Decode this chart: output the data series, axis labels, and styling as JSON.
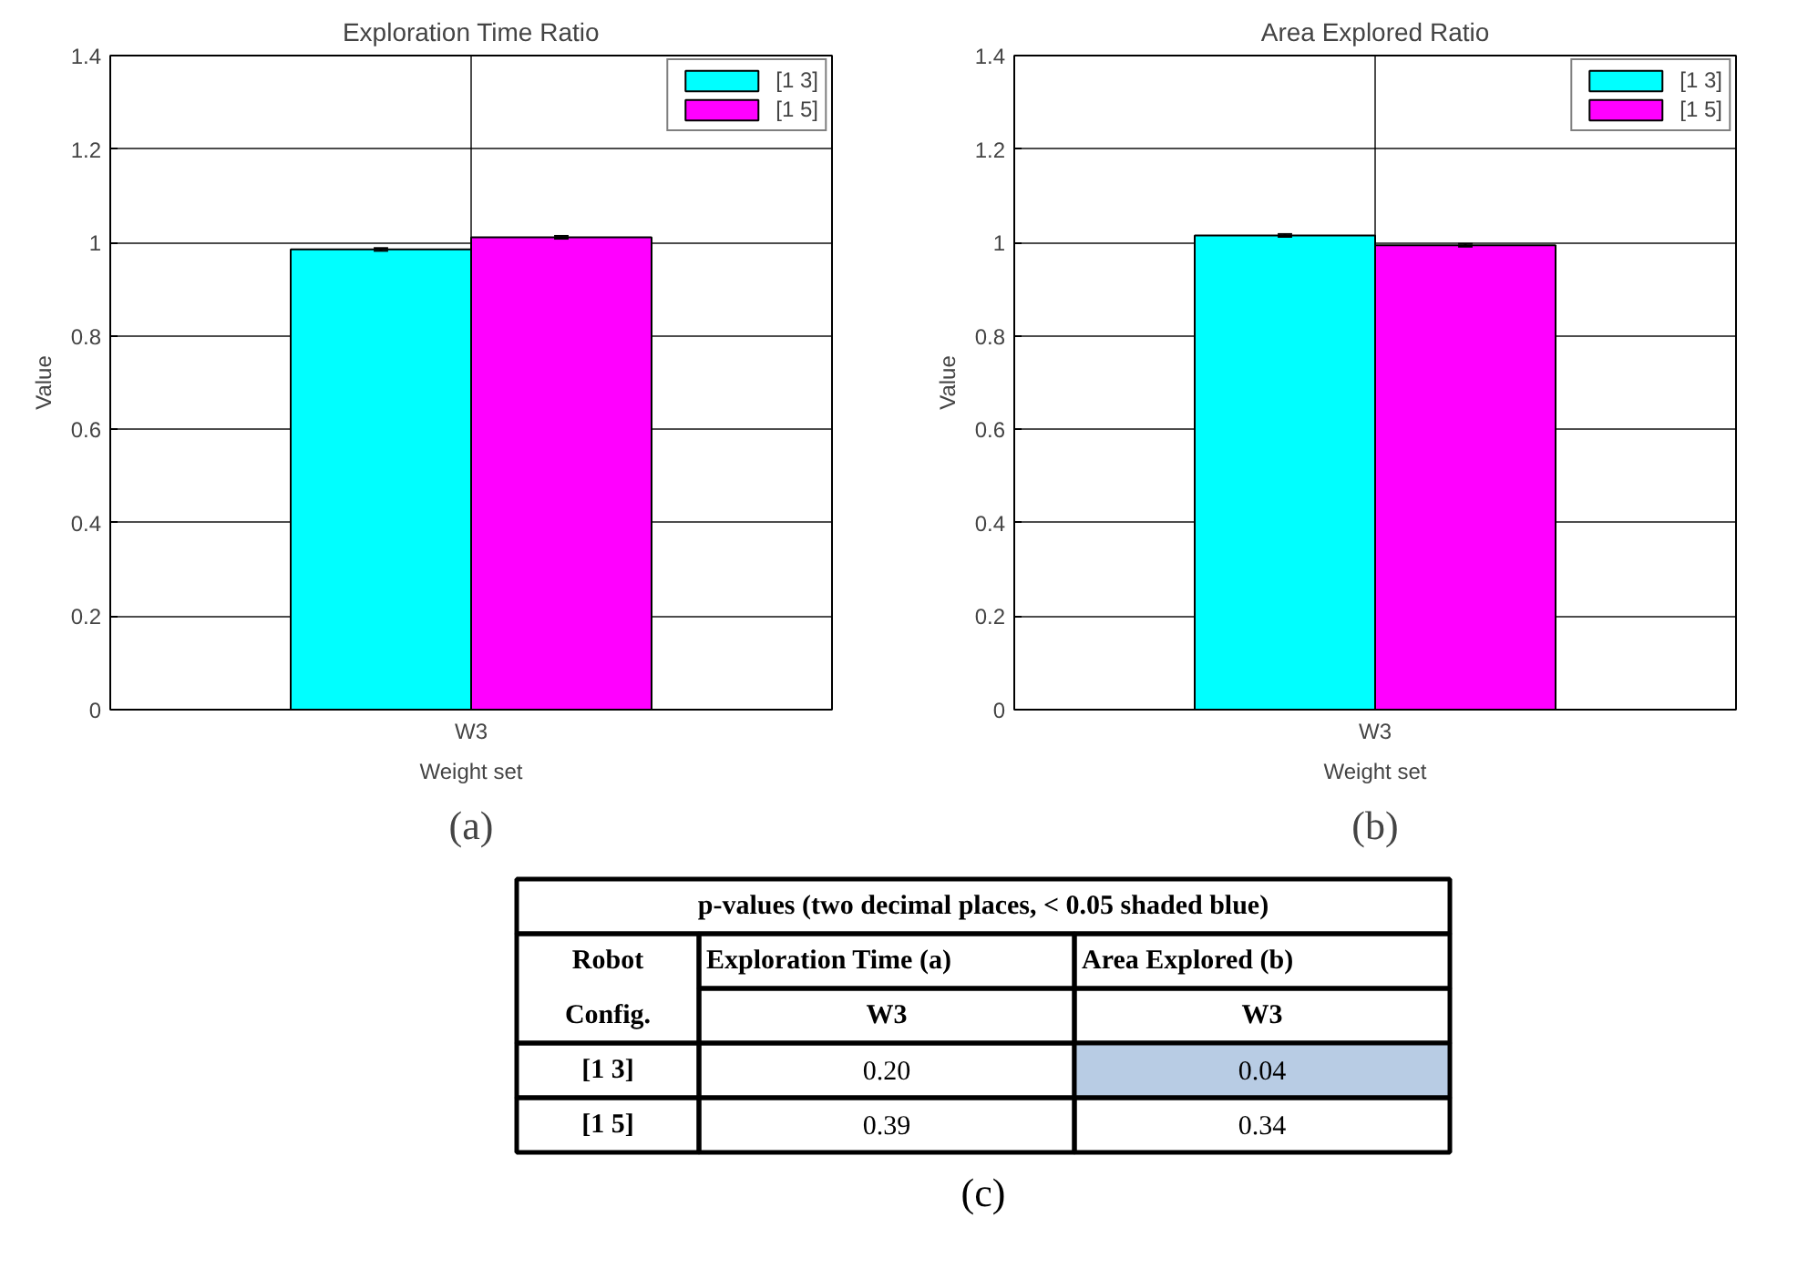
{
  "chart_data": [
    {
      "type": "bar",
      "title": "Exploration Time Ratio",
      "xlabel": "Weight set",
      "ylabel": "Value",
      "categories": [
        "W3"
      ],
      "series": [
        {
          "name": "[1 3]",
          "color": "#00ffff",
          "values": [
            0.985
          ],
          "errors": [
            0.003
          ]
        },
        {
          "name": "[1 5]",
          "color": "#ff00ff",
          "values": [
            1.011
          ],
          "errors": [
            0.003
          ]
        }
      ],
      "ylim": [
        0,
        1.4
      ],
      "yticks": [
        0,
        0.2,
        0.4,
        0.6,
        0.8,
        1,
        1.2,
        1.4
      ],
      "grid": true,
      "legend": "top right",
      "annotations": [
        "(a)"
      ]
    },
    {
      "type": "bar",
      "title": "Area Explored Ratio",
      "xlabel": "Weight set",
      "ylabel": "Value",
      "categories": [
        "W3"
      ],
      "series": [
        {
          "name": "[1 3]",
          "color": "#00ffff",
          "values": [
            1.015
          ],
          "errors": [
            0.003
          ]
        },
        {
          "name": "[1 5]",
          "color": "#ff00ff",
          "values": [
            0.994
          ],
          "errors": [
            0.003
          ]
        }
      ],
      "ylim": [
        0,
        1.4
      ],
      "yticks": [
        0,
        0.2,
        0.4,
        0.6,
        0.8,
        1,
        1.2,
        1.4
      ],
      "grid": true,
      "legend": "top right",
      "annotations": [
        "(b)"
      ]
    },
    {
      "type": "other",
      "title": "p-values (two decimal places, < 0.05 shaded blue)",
      "ylabel": "Robot Config.",
      "categories": [
        "Exploration Time (a)",
        "Area Explored (b)"
      ],
      "y_categories": [
        "[1 3]",
        "[1 5]"
      ],
      "cell_labels": [
        [
          "0.20",
          "0.04"
        ],
        [
          "0.39",
          "0.34"
        ]
      ],
      "colors": [
        [
          null,
          "#b8cce4"
        ],
        [
          null,
          null
        ]
      ],
      "annotations": [
        "W3",
        "W3",
        "(c)"
      ]
    }
  ]
}
